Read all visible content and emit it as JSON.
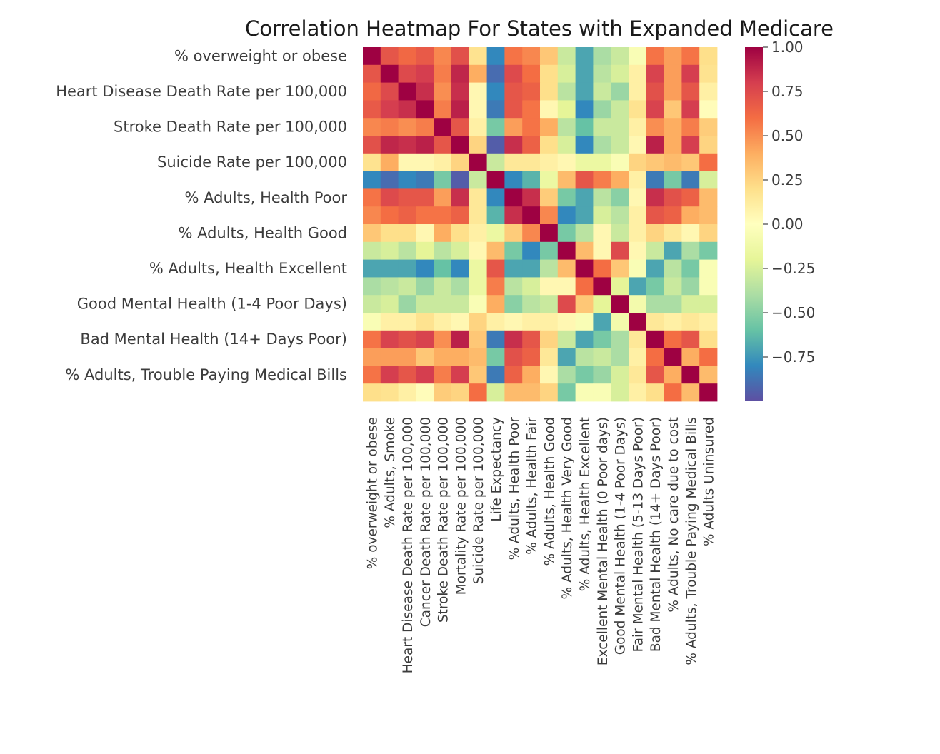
{
  "chart_data": {
    "type": "heatmap",
    "title": "Correlation Heatmap For States with Expanded Medicare",
    "variables": [
      "% overweight or obese",
      "% Adults, Smoke",
      "Heart Disease Death Rate per 100,000",
      "Cancer Death Rate per 100,000",
      "Stroke Death Rate per 100,000",
      "Mortality Rate per 100,000",
      "Suicide Rate per 100,000",
      "Life Expectancy",
      "% Adults, Health Poor",
      "% Adults, Health Fair",
      "% Adults, Health Good",
      "% Adults, Health Very Good",
      "% Adults, Health Excellent",
      "Excellent Mental Health (0 Poor days)",
      "Good Mental Health (1-4 Poor Days)",
      "Fair Mental Health (5-13 Days Poor)",
      "Bad Mental Health (14+ Days Poor)",
      "% Adults, No care due to cost",
      "% Adults, Trouble Paying Medical Bills",
      "% Adults Uninsured"
    ],
    "y_tick_labels": [
      "% overweight or obese",
      "Heart Disease Death Rate per 100,000",
      "Stroke Death Rate per 100,000",
      "Suicide Rate per 100,000",
      "% Adults, Health Poor",
      "% Adults, Health Good",
      "% Adults, Health Excellent",
      "Good Mental Health (1-4 Poor Days)",
      "Bad Mental Health (14+ Days Poor)",
      "% Adults, Trouble Paying Medical Bills"
    ],
    "x_tick_labels": [
      "% overweight or obese",
      "% Adults, Smoke",
      "Heart Disease Death Rate per 100,000",
      "Cancer Death Rate per 100,000",
      "Stroke Death Rate per 100,000",
      "Mortality Rate per 100,000",
      "Suicide Rate per 100,000",
      "Life Expectancy",
      "% Adults, Health Poor",
      "% Adults, Health Fair",
      "% Adults, Health Good",
      "% Adults, Health Very Good",
      "% Adults, Health Excellent",
      "Excellent Mental Health (0 Poor days)",
      "Good Mental Health (1-4 Poor Days)",
      "Fair Mental Health (5-13 Days Poor)",
      "Bad Mental Health (14+ Days Poor)",
      "% Adults, No care due to cost",
      "% Adults, Trouble Paying Medical Bills",
      "% Adults Uninsured"
    ],
    "matrix": [
      [
        1.0,
        0.7,
        0.62,
        0.68,
        0.52,
        0.72,
        0.18,
        -0.8,
        0.58,
        0.52,
        0.3,
        -0.3,
        -0.7,
        -0.4,
        -0.3,
        -0.05,
        0.58,
        0.45,
        0.58,
        0.2
      ],
      [
        0.7,
        1.0,
        0.75,
        0.8,
        0.55,
        0.88,
        0.4,
        -0.9,
        0.75,
        0.6,
        0.2,
        -0.25,
        -0.7,
        -0.35,
        -0.25,
        0.1,
        0.78,
        0.45,
        0.8,
        0.18
      ],
      [
        0.62,
        0.75,
        1.0,
        0.85,
        0.5,
        0.85,
        0.05,
        -0.8,
        0.7,
        0.65,
        0.2,
        -0.35,
        -0.7,
        -0.3,
        -0.45,
        0.1,
        0.72,
        0.45,
        0.7,
        0.1
      ],
      [
        0.68,
        0.8,
        0.85,
        1.0,
        0.55,
        0.9,
        0.05,
        -0.85,
        0.7,
        0.58,
        0.05,
        -0.2,
        -0.8,
        -0.45,
        -0.3,
        0.18,
        0.78,
        0.3,
        0.8,
        0.02
      ],
      [
        0.52,
        0.55,
        0.5,
        0.55,
        1.0,
        0.7,
        0.1,
        -0.55,
        0.45,
        0.58,
        0.4,
        -0.35,
        -0.6,
        -0.3,
        -0.3,
        0.1,
        0.5,
        0.4,
        0.55,
        0.28
      ],
      [
        0.72,
        0.88,
        0.85,
        0.9,
        0.7,
        1.0,
        0.25,
        -0.95,
        0.85,
        0.65,
        0.2,
        -0.25,
        -0.8,
        -0.4,
        -0.3,
        0.05,
        0.9,
        0.4,
        0.8,
        0.25
      ],
      [
        0.18,
        0.4,
        0.05,
        0.05,
        0.1,
        0.25,
        1.0,
        -0.3,
        0.15,
        0.15,
        0.1,
        0.05,
        -0.15,
        -0.15,
        -0.05,
        0.25,
        0.3,
        0.35,
        0.3,
        0.6
      ],
      [
        -0.8,
        -0.9,
        -0.8,
        -0.85,
        -0.55,
        -0.95,
        -0.3,
        1.0,
        -0.8,
        -0.65,
        -0.15,
        0.35,
        0.7,
        0.55,
        0.4,
        0.1,
        -0.85,
        -0.55,
        -0.85,
        -0.25
      ],
      [
        0.58,
        0.75,
        0.7,
        0.7,
        0.45,
        0.85,
        0.15,
        -0.8,
        1.0,
        0.85,
        0.28,
        -0.55,
        -0.7,
        -0.35,
        -0.5,
        0.05,
        0.85,
        0.72,
        0.65,
        0.35
      ],
      [
        0.52,
        0.6,
        0.65,
        0.58,
        0.58,
        0.65,
        0.15,
        -0.65,
        0.85,
        1.0,
        0.52,
        -0.8,
        -0.7,
        -0.25,
        -0.35,
        0.1,
        0.7,
        0.65,
        0.4,
        0.35
      ],
      [
        0.3,
        0.2,
        0.2,
        0.05,
        0.4,
        0.2,
        0.1,
        -0.15,
        0.28,
        0.52,
        1.0,
        -0.55,
        -0.35,
        0.05,
        -0.3,
        0.1,
        0.25,
        0.15,
        0.05,
        0.25
      ],
      [
        -0.3,
        -0.25,
        -0.35,
        -0.2,
        -0.35,
        -0.25,
        0.05,
        0.35,
        -0.55,
        -0.8,
        -0.55,
        1.0,
        0.35,
        0.05,
        0.75,
        0.05,
        -0.3,
        -0.7,
        -0.4,
        -0.55
      ],
      [
        -0.7,
        -0.7,
        -0.7,
        -0.8,
        -0.6,
        -0.8,
        -0.15,
        0.7,
        -0.7,
        -0.7,
        -0.35,
        0.35,
        1.0,
        0.6,
        0.3,
        -0.05,
        -0.7,
        -0.35,
        -0.55,
        -0.05
      ],
      [
        -0.4,
        -0.35,
        -0.3,
        -0.45,
        -0.3,
        -0.4,
        -0.15,
        0.55,
        -0.35,
        -0.25,
        0.05,
        0.05,
        0.6,
        1.0,
        -0.2,
        -0.7,
        -0.55,
        -0.3,
        -0.45,
        -0.05
      ],
      [
        -0.3,
        -0.25,
        -0.45,
        -0.3,
        -0.3,
        -0.3,
        -0.05,
        0.4,
        -0.5,
        -0.35,
        -0.3,
        0.75,
        0.3,
        -0.2,
        1.0,
        -0.1,
        -0.4,
        -0.4,
        -0.25,
        -0.25
      ],
      [
        -0.05,
        0.1,
        0.1,
        0.18,
        0.1,
        0.05,
        0.25,
        0.1,
        0.05,
        0.1,
        0.1,
        0.05,
        -0.05,
        -0.7,
        -0.1,
        1.0,
        0.15,
        0.1,
        0.15,
        0.1
      ],
      [
        0.58,
        0.78,
        0.72,
        0.78,
        0.5,
        0.9,
        0.3,
        -0.85,
        0.85,
        0.7,
        0.25,
        -0.3,
        -0.7,
        -0.55,
        -0.4,
        0.15,
        1.0,
        0.6,
        0.7,
        0.2
      ],
      [
        0.45,
        0.45,
        0.45,
        0.3,
        0.4,
        0.4,
        0.35,
        -0.55,
        0.72,
        0.65,
        0.15,
        -0.7,
        -0.35,
        -0.3,
        -0.4,
        0.1,
        0.6,
        1.0,
        0.4,
        0.6
      ],
      [
        0.58,
        0.8,
        0.7,
        0.8,
        0.55,
        0.8,
        0.3,
        -0.85,
        0.65,
        0.4,
        0.05,
        -0.4,
        -0.55,
        -0.45,
        -0.25,
        0.15,
        0.7,
        0.4,
        1.0,
        0.35
      ],
      [
        0.2,
        0.18,
        0.1,
        0.02,
        0.28,
        0.25,
        0.6,
        -0.25,
        0.35,
        0.35,
        0.25,
        -0.55,
        -0.05,
        -0.05,
        -0.25,
        0.1,
        0.2,
        0.6,
        0.35,
        1.0
      ]
    ],
    "colorbar": {
      "colormap": "Spectral_r",
      "range": [
        -1.0,
        1.0
      ],
      "ticks": [
        1.0,
        0.75,
        0.5,
        0.25,
        0.0,
        -0.25,
        -0.5,
        -0.75
      ],
      "tick_labels": [
        "1.00",
        "0.75",
        "0.50",
        "0.25",
        "0.00",
        "−0.25",
        "−0.50",
        "−0.75"
      ]
    },
    "grid": false,
    "colors": {
      "c1": "#5e4fa2",
      "c2": "#3288bd",
      "c3": "#66c2a5",
      "c4": "#abdda4",
      "c5": "#e6f598",
      "c6": "#ffffbf",
      "c7": "#fee08b",
      "c8": "#fdae61",
      "c9": "#f46d43",
      "c10": "#d53e4f",
      "c11": "#9e0142"
    }
  }
}
